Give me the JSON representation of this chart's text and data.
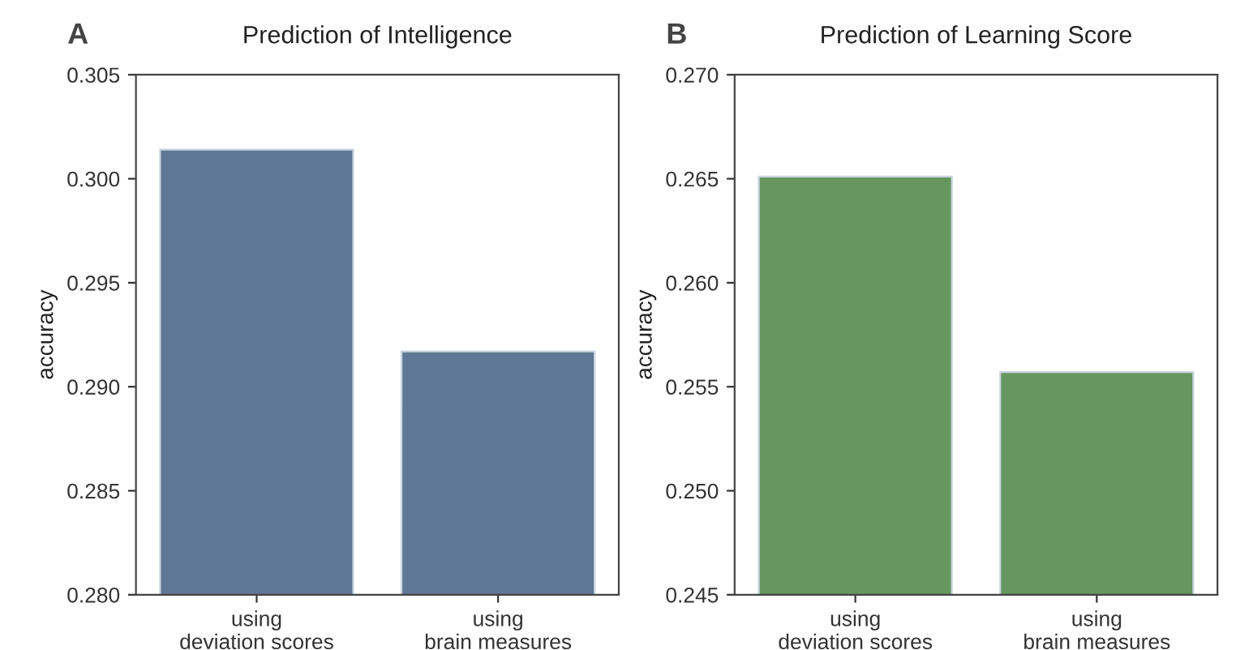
{
  "chart_data": [
    {
      "type": "bar",
      "title": "Prediction of Intelligence",
      "ylabel": "accuracy",
      "annotations": [
        "A"
      ],
      "categories": [
        "using\ndeviation scores",
        "using\nbrain measures"
      ],
      "values": [
        0.3014,
        0.2917
      ],
      "color": "#5f7896",
      "ylim": [
        0.28,
        0.305
      ],
      "yticks": [
        {
          "value": 0.28,
          "label": "0.280"
        },
        0.285,
        {
          "value": 0.29,
          "label": "0.290"
        },
        0.295,
        {
          "value": 0.3,
          "label": "0.300"
        },
        0.305
      ],
      "grid": false,
      "legend": false
    },
    {
      "type": "bar",
      "title": "Prediction of Learning Score",
      "ylabel": "accuracy",
      "annotations": [
        "B"
      ],
      "categories": [
        "using\ndeviation scores",
        "using\nbrain measures"
      ],
      "values": [
        0.2651,
        0.2557
      ],
      "color": "#68965f",
      "ylim": [
        0.245,
        0.27
      ],
      "yticks": [
        0.245,
        {
          "value": 0.25,
          "label": "0.250"
        },
        0.255,
        {
          "value": 0.26,
          "label": "0.260"
        },
        0.265,
        {
          "value": 0.27,
          "label": "0.270"
        }
      ],
      "grid": false,
      "legend": false
    }
  ]
}
